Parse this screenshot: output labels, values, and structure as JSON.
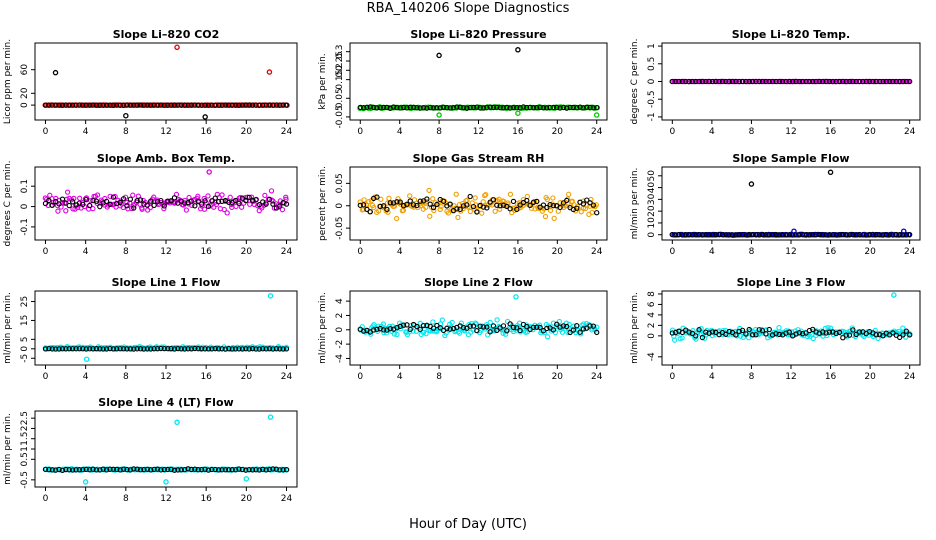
{
  "figure": {
    "title": "RBA_140206  Slope Diagnostics",
    "xlabel": "Hour of Day (UTC)"
  },
  "chart_data": [
    {
      "type": "scatter",
      "title": "Slope Li–820 CO2",
      "ylabel": "Licor ppm per min.",
      "xlim": [
        0,
        24
      ],
      "ylim": [
        -20,
        100
      ],
      "xticks": [
        0,
        4,
        8,
        12,
        16,
        20,
        24
      ],
      "yticks": [
        0,
        20,
        60
      ],
      "series": [
        {
          "name": "primary",
          "color": "#e00000",
          "base": 0,
          "noise": 0.3,
          "outliers": [
            [
              13.1,
              98
            ],
            [
              22.3,
              56
            ]
          ]
        },
        {
          "name": "secondary",
          "color": "#000000",
          "base": 0,
          "noise": 0.3,
          "outliers": [
            [
              1.0,
              55
            ],
            [
              8.0,
              -18
            ],
            [
              15.9,
              -20
            ]
          ]
        }
      ]
    },
    {
      "type": "scatter",
      "title": "Slope Li–820 Pressure",
      "ylabel": "kPa per min.",
      "xlim": [
        0,
        24
      ],
      "ylim": [
        -0.05,
        0.33
      ],
      "xticks": [
        0,
        4,
        8,
        12,
        16,
        20,
        24
      ],
      "yticks": [
        -0.05,
        0.05,
        0.15,
        0.2,
        0.25,
        0.3
      ],
      "series": [
        {
          "name": "primary",
          "color": "#00c800",
          "base": 0,
          "noise": 0.006,
          "outliers": [
            [
              8.0,
              -0.04
            ],
            [
              16.0,
              -0.03
            ],
            [
              24.0,
              -0.04
            ]
          ]
        },
        {
          "name": "secondary",
          "color": "#000000",
          "base": 0,
          "noise": 0.005,
          "outliers": [
            [
              8.0,
              0.28
            ],
            [
              16.0,
              0.31
            ]
          ]
        }
      ]
    },
    {
      "type": "scatter",
      "title": "Slope Li–820 Temp.",
      "ylabel": "degrees C per min.",
      "xlim": [
        0,
        24
      ],
      "ylim": [
        -1,
        1
      ],
      "xticks": [
        0,
        4,
        8,
        12,
        16,
        20,
        24
      ],
      "yticks": [
        -1,
        -0.5,
        0,
        0.5,
        1
      ],
      "series": [
        {
          "name": "primary",
          "color": "#e000e0",
          "base": 0,
          "noise": 0.003,
          "outliers": []
        },
        {
          "name": "secondary",
          "color": "#000000",
          "base": 0,
          "noise": 0.003,
          "outliers": []
        }
      ]
    },
    {
      "type": "scatter",
      "title": "Slope Amb. Box Temp.",
      "ylabel": "degrees C per min.",
      "xlim": [
        0,
        24
      ],
      "ylim": [
        -0.15,
        0.18
      ],
      "xticks": [
        0,
        4,
        8,
        12,
        16,
        20,
        24
      ],
      "yticks": [
        -0.1,
        0,
        0.1
      ],
      "series": [
        {
          "name": "primary",
          "color": "#e000e0",
          "base": 0.02,
          "noise": 0.06,
          "outliers": [
            [
              16.3,
              0.17
            ]
          ]
        },
        {
          "name": "secondary",
          "color": "#000000",
          "base": 0.02,
          "noise": 0.04,
          "outliers": []
        }
      ]
    },
    {
      "type": "scatter",
      "title": "Slope Gas Stream RH",
      "ylabel": "percent per min.",
      "xlim": [
        0,
        24
      ],
      "ylim": [
        -0.07,
        0.08
      ],
      "xticks": [
        0,
        4,
        8,
        12,
        16,
        20,
        24
      ],
      "yticks": [
        -0.05,
        0,
        0.05
      ],
      "series": [
        {
          "name": "primary",
          "color": "#f0a000",
          "base": 0,
          "noise": 0.035,
          "outliers": []
        },
        {
          "name": "secondary",
          "color": "#000000",
          "base": 0,
          "noise": 0.025,
          "outliers": []
        }
      ]
    },
    {
      "type": "scatter",
      "title": "Slope Sample Flow",
      "ylabel": "ml/min per min.",
      "xlim": [
        0,
        24
      ],
      "ylim": [
        -2,
        55
      ],
      "xticks": [
        0,
        4,
        8,
        12,
        16,
        20,
        24
      ],
      "yticks": [
        0,
        10,
        20,
        30,
        40,
        50
      ],
      "series": [
        {
          "name": "primary",
          "color": "#0000e0",
          "base": 0,
          "noise": 0.5,
          "outliers": [
            [
              12.3,
              3
            ],
            [
              23.4,
              3
            ]
          ]
        },
        {
          "name": "secondary",
          "color": "#000000",
          "base": 0,
          "noise": 0.3,
          "outliers": [
            [
              8.0,
              43
            ],
            [
              16.0,
              53
            ]
          ]
        }
      ]
    },
    {
      "type": "scatter",
      "title": "Slope Line 1 Flow",
      "ylabel": "ml/min per min.",
      "xlim": [
        0,
        24
      ],
      "ylim": [
        -7,
        29
      ],
      "xticks": [
        0,
        4,
        8,
        12,
        16,
        20,
        24
      ],
      "yticks": [
        -5,
        0,
        5,
        15,
        25
      ],
      "series": [
        {
          "name": "primary",
          "color": "#00e8f0",
          "base": 0.5,
          "noise": 0.9,
          "outliers": [
            [
              22.4,
              28
            ],
            [
              4.1,
              -5.5
            ]
          ]
        },
        {
          "name": "secondary",
          "color": "#000000",
          "base": 0,
          "noise": 0.2,
          "outliers": []
        }
      ]
    },
    {
      "type": "scatter",
      "title": "Slope Line 2 Flow",
      "ylabel": "ml/min per min.",
      "xlim": [
        0,
        24
      ],
      "ylim": [
        -4.5,
        5
      ],
      "xticks": [
        0,
        4,
        8,
        12,
        16,
        20,
        24
      ],
      "yticks": [
        -4,
        -2,
        0,
        2,
        4
      ],
      "series": [
        {
          "name": "primary",
          "color": "#00e8f0",
          "base": 0.2,
          "noise": 1.5,
          "outliers": [
            [
              15.8,
              4.6
            ]
          ]
        },
        {
          "name": "secondary",
          "color": "#000000",
          "base": 0.2,
          "noise": 1.0,
          "outliers": []
        }
      ]
    },
    {
      "type": "scatter",
      "title": "Slope Line 3 Flow",
      "ylabel": "ml/min per min.",
      "xlim": [
        0,
        24
      ],
      "ylim": [
        -5,
        8
      ],
      "xticks": [
        0,
        4,
        8,
        12,
        16,
        20,
        24
      ],
      "yticks": [
        -4,
        0,
        2,
        4,
        6,
        8
      ],
      "series": [
        {
          "name": "primary",
          "color": "#00e8f0",
          "base": 0.5,
          "noise": 1.5,
          "outliers": [
            [
              22.4,
              7.8
            ]
          ]
        },
        {
          "name": "secondary",
          "color": "#000000",
          "base": 0.5,
          "noise": 1.0,
          "outliers": []
        }
      ]
    },
    {
      "type": "scatter",
      "title": "Slope Line 4 (LT) Flow",
      "ylabel": "ml/min per min.",
      "xlim": [
        0,
        24
      ],
      "ylim": [
        -0.7,
        2.7
      ],
      "xticks": [
        0,
        4,
        8,
        12,
        16,
        20,
        24
      ],
      "yticks": [
        -0.5,
        0.5,
        1,
        1.5,
        2,
        2.5
      ],
      "series": [
        {
          "name": "primary",
          "color": "#00e8f0",
          "base": 0,
          "noise": 0.05,
          "outliers": [
            [
              13.1,
              2.3
            ],
            [
              22.4,
              2.55
            ],
            [
              4.0,
              -0.6
            ],
            [
              12.0,
              -0.6
            ],
            [
              20.0,
              -0.45
            ]
          ]
        },
        {
          "name": "secondary",
          "color": "#000000",
          "base": 0,
          "noise": 0.05,
          "outliers": []
        }
      ]
    }
  ]
}
